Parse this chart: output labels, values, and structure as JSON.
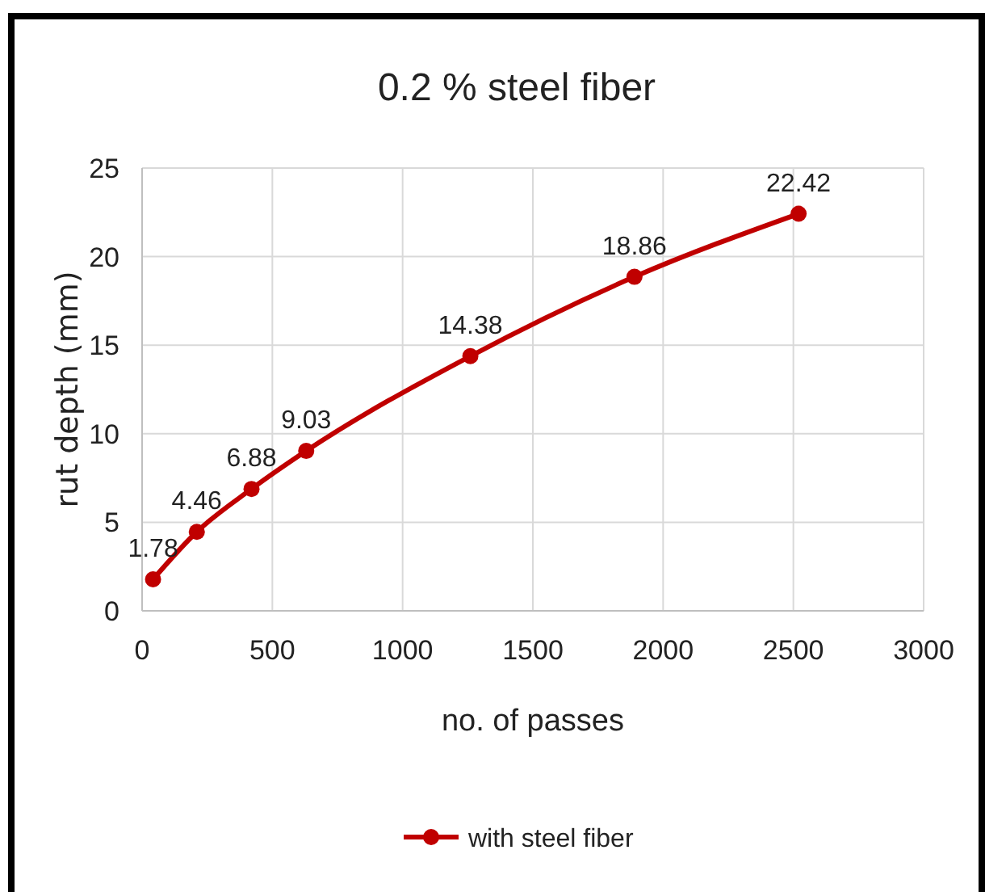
{
  "chart_data": {
    "type": "line",
    "title": "0.2 % steel fiber",
    "xlabel": "no. of passes",
    "ylabel": "rut depth (mm)",
    "x": [
      42,
      210,
      420,
      630,
      1260,
      1890,
      2520
    ],
    "series": [
      {
        "name": "with steel fiber",
        "color": "#c00000",
        "values": [
          1.78,
          4.46,
          6.88,
          9.03,
          14.38,
          18.86,
          22.42
        ]
      }
    ],
    "xlim": [
      0,
      3000
    ],
    "xticks": [
      0,
      500,
      1000,
      1500,
      2000,
      2500,
      3000
    ],
    "ylim": [
      0,
      25
    ],
    "yticks": [
      0,
      5,
      10,
      15,
      20,
      25
    ],
    "grid": true,
    "legend": "bottom",
    "marker": "circle",
    "line_style": "solid",
    "data_labels": true
  }
}
